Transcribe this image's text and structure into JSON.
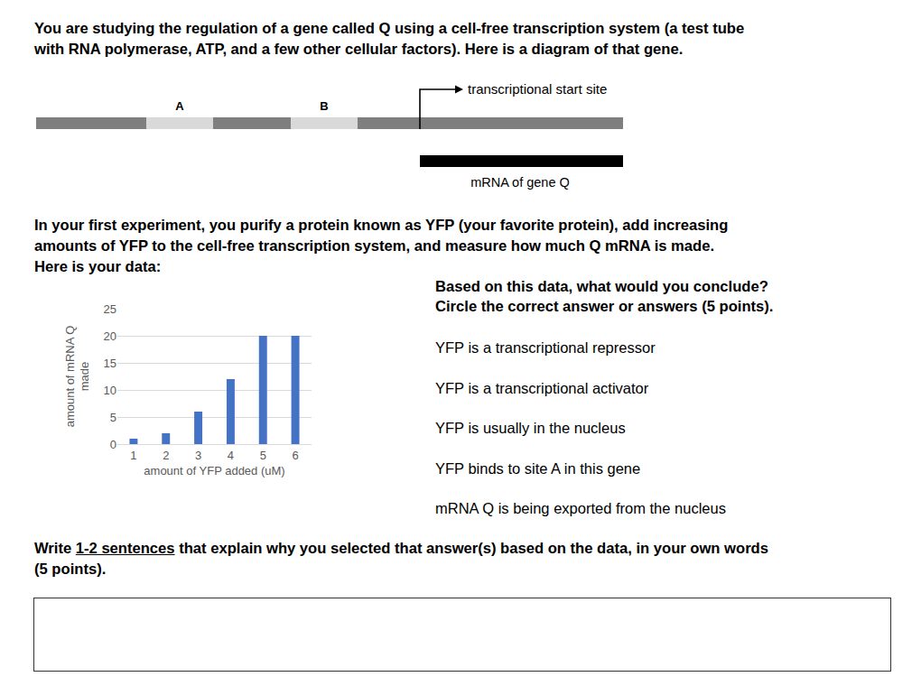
{
  "intro": [
    "You are studying the regulation of a gene called Q using a cell-free transcription system (a test tube",
    "with RNA polymerase, ATP, and a few other cellular factors). Here is a diagram of that gene."
  ],
  "diagram": {
    "sites": [
      "A",
      "B"
    ],
    "start_label": "transcriptional start site",
    "mrna_label": "mRNA of gene Q"
  },
  "experiment": [
    "In your first experiment, you purify a protein known as YFP (your favorite protein), add increasing",
    "amounts of YFP to the cell-free transcription system, and measure how much Q mRNA is made.",
    "Here is your data:"
  ],
  "chart_data": {
    "type": "bar",
    "x": [
      1,
      2,
      3,
      4,
      5,
      6
    ],
    "values": [
      1,
      2,
      6,
      12,
      20,
      20
    ],
    "color": "#4472c4",
    "xlabel": "amount of YFP added (uM)",
    "ylabel": "amount of mRNA Q made",
    "xlim": [
      0.5,
      6.5
    ],
    "xticks": [
      1,
      2,
      3,
      4,
      5,
      6
    ],
    "ylim": [
      0,
      25
    ],
    "yticks": [
      0,
      5,
      10,
      15,
      20,
      25
    ],
    "grid": true
  },
  "question": [
    "Based on this data, what would you conclude?",
    "Circle the correct answer or answers (5 points)."
  ],
  "options": [
    "YFP is a transcriptional repressor",
    "YFP is a transcriptional activator",
    "YFP is usually in the nucleus",
    "YFP binds to site A in this gene",
    "mRNA Q is being exported from the nucleus"
  ],
  "prompt": {
    "lead": "Write ",
    "underlined": "1-2 sentences",
    "rest": " that explain why you selected that answer(s) based on the data, in your own words",
    "end": "(5 points)."
  }
}
